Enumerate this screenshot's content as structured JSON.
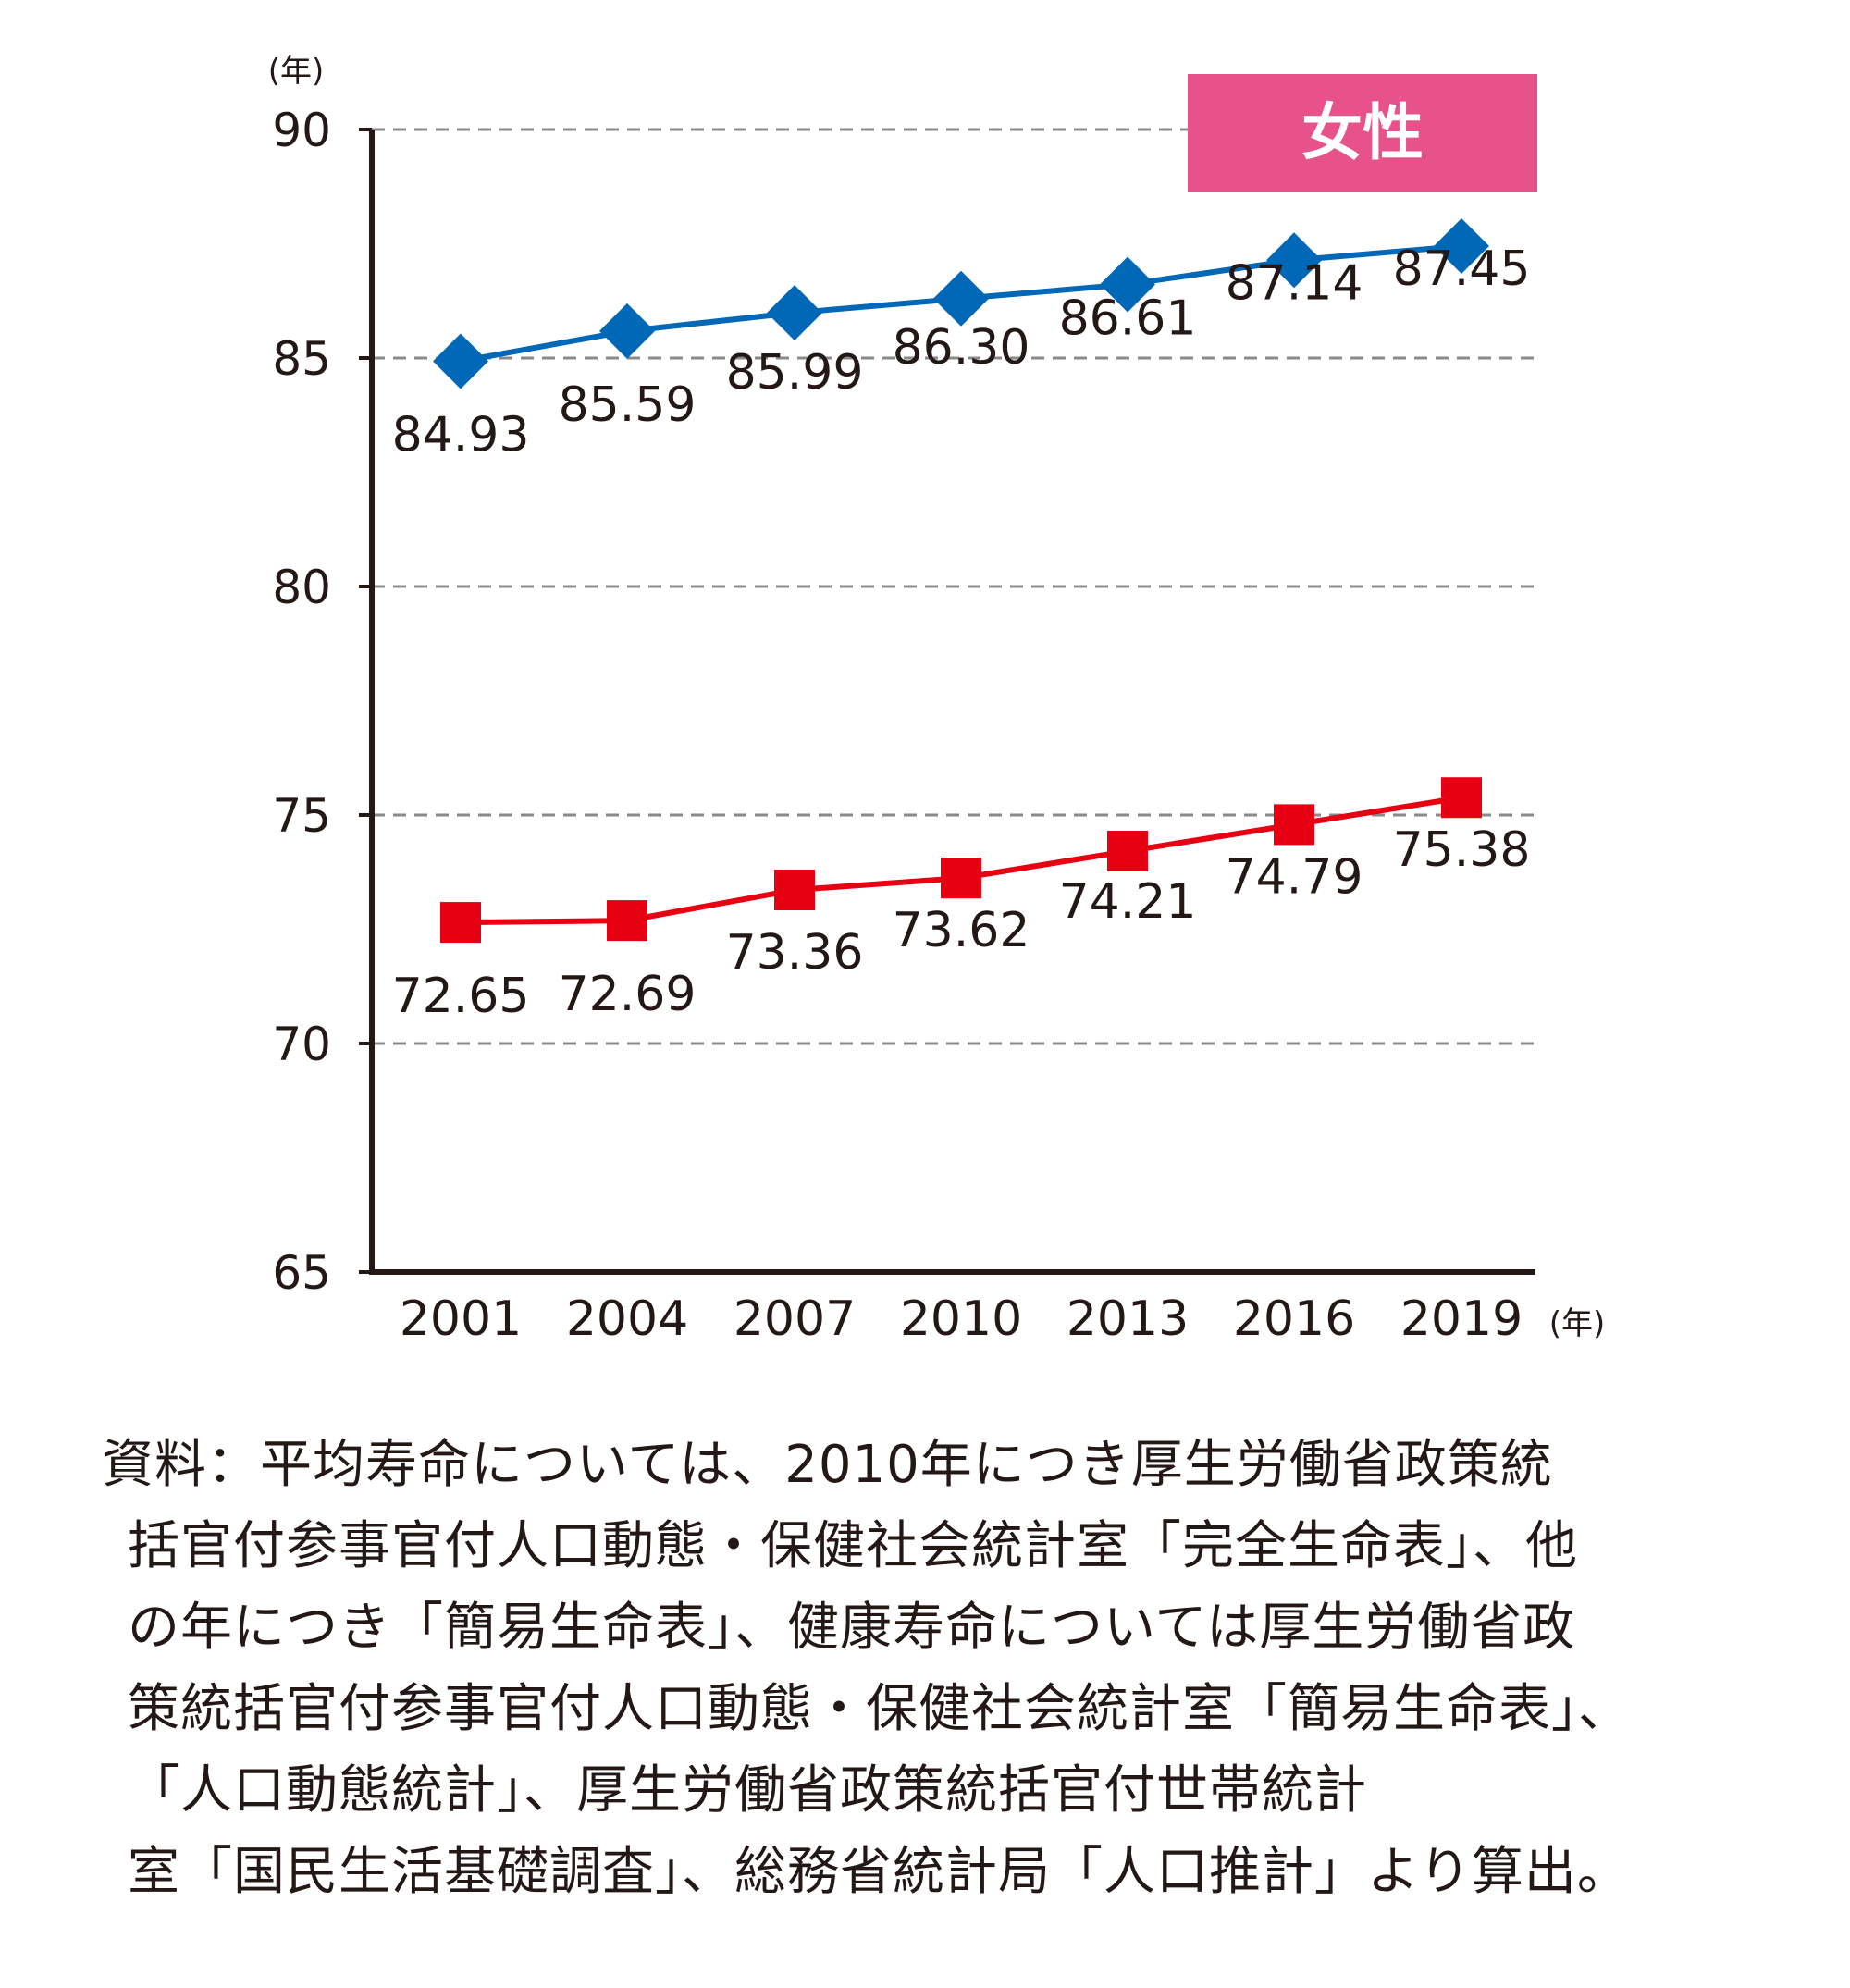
{
  "chart_data": {
    "type": "line",
    "y_unit": "(年)",
    "x_unit": "(年)",
    "badge": "女性",
    "categories": [
      "2001",
      "2004",
      "2007",
      "2010",
      "2013",
      "2016",
      "2019"
    ],
    "ylim": [
      65,
      90
    ],
    "yticks": [
      "90",
      "85",
      "80",
      "75",
      "70",
      "65"
    ],
    "grid": true,
    "series": [
      {
        "values": [
          84.93,
          85.59,
          85.99,
          86.3,
          86.61,
          87.14,
          87.45
        ],
        "labels": [
          "84.93",
          "85.59",
          "85.99",
          "86.30",
          "86.61",
          "87.14",
          "87.45"
        ],
        "color": "#0068b7",
        "marker": "diamond"
      },
      {
        "values": [
          72.65,
          72.69,
          73.36,
          73.62,
          74.21,
          74.79,
          75.38
        ],
        "labels": [
          "72.65",
          "72.69",
          "73.36",
          "73.62",
          "74.21",
          "74.79",
          "75.38"
        ],
        "color": "#e60012",
        "marker": "square"
      }
    ],
    "badge_color": "#e8528a"
  },
  "source_note": [
    "資料：平均寿命については、2010年につき厚生労働省政策統",
    "括官付参事官付人口動態・保健社会統計室「完全生命表」、他",
    "の年につき「簡易生命表」、健康寿命については厚生労働省政",
    "策統括官付参事官付人口動態・保健社会統計室「簡易生命表」、",
    "「人口動態統計」、厚生労働省政策統括官付世帯統計",
    "室「国民生活基礎調査」、総務省統計局「人口推計」より算出。"
  ]
}
